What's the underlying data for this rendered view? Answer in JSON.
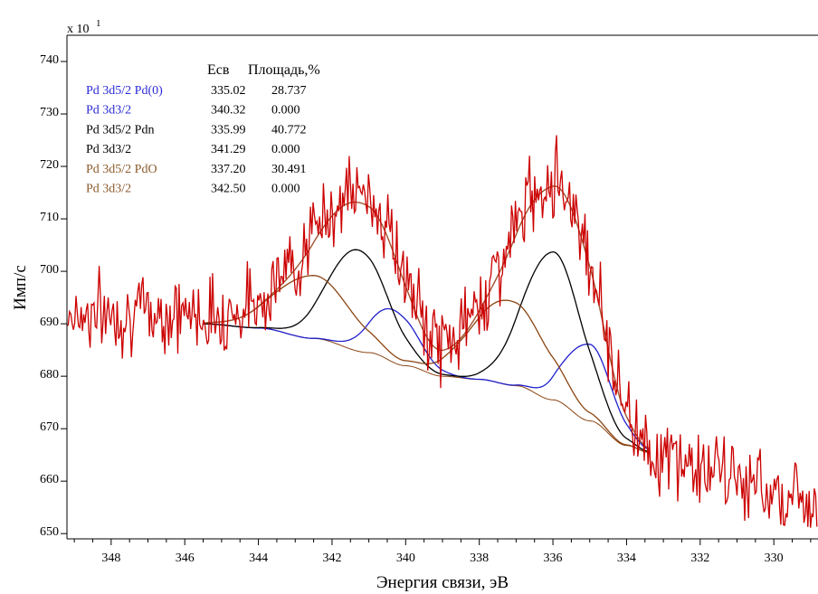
{
  "chart_data": {
    "type": "line",
    "scale_label": "x 10",
    "scale_exponent": "1",
    "xlabel": "Энергия связи, эВ",
    "ylabel": "Имп/с",
    "xlim": [
      349.2,
      328.8
    ],
    "ylim": [
      649,
      745
    ],
    "x_ticks": [
      348,
      346,
      344,
      342,
      340,
      338,
      336,
      334,
      332,
      330
    ],
    "y_ticks": [
      650,
      660,
      670,
      680,
      690,
      700,
      710,
      720,
      730,
      740
    ],
    "table": {
      "header_e": "Есв",
      "header_area": "Площадь,%",
      "rows": [
        {
          "label": "Pd 3d5/2 Pd(0)",
          "energy": "335.02",
          "area": "28.737",
          "color": "#2a2ad6"
        },
        {
          "label": "Pd 3d3/2",
          "energy": "340.32",
          "area": "0.000",
          "color": "#2a2ad6"
        },
        {
          "label": "Pd 3d5/2 Pdn",
          "energy": "335.99",
          "area": "40.772",
          "color": "#000000"
        },
        {
          "label": "Pd 3d3/2",
          "energy": "341.29",
          "area": "0.000",
          "color": "#000000"
        },
        {
          "label": "Pd 3d5/2 PdO",
          "energy": "337.20",
          "area": "30.491",
          "color": "#8b5a2b"
        },
        {
          "label": "Pd 3d3/2",
          "energy": "342.50",
          "area": "0.000",
          "color": "#8b5a2b"
        }
      ]
    },
    "colors": {
      "raw": "#cc0000",
      "envelope": "#a0522d",
      "pd0": "#2020cc",
      "pdn": "#000000",
      "pdo": "#8b4513"
    },
    "background": {
      "x": [
        345.5,
        344.0,
        342.5,
        341.0,
        340.0,
        339.0,
        338.0,
        337.0,
        336.0,
        335.0,
        334.0,
        333.4
      ],
      "y": [
        690.0,
        689.2,
        687.2,
        684.5,
        682.0,
        680.0,
        679.4,
        678.2,
        675.5,
        671.5,
        666.8,
        665.5
      ]
    },
    "series": [
      {
        "key": "pd0",
        "peaks": [
          {
            "center": 340.32,
            "height": 10.0,
            "fwhm": 1.5
          },
          {
            "center": 335.02,
            "height": 14.6,
            "fwhm": 1.5
          }
        ]
      },
      {
        "key": "pdn",
        "peaks": [
          {
            "center": 341.29,
            "height": 19.3,
            "fwhm": 1.9
          },
          {
            "center": 335.99,
            "height": 28.2,
            "fwhm": 1.9
          }
        ]
      },
      {
        "key": "pdo",
        "peaks": [
          {
            "center": 342.5,
            "height": 12.0,
            "fwhm": 2.4
          },
          {
            "center": 337.2,
            "height": 16.1,
            "fwhm": 2.4
          }
        ]
      }
    ],
    "raw_noise": {
      "seed": 7,
      "amplitude": 3.6
    },
    "raw_left_level": 692.0,
    "raw_right_level": 657.0
  }
}
